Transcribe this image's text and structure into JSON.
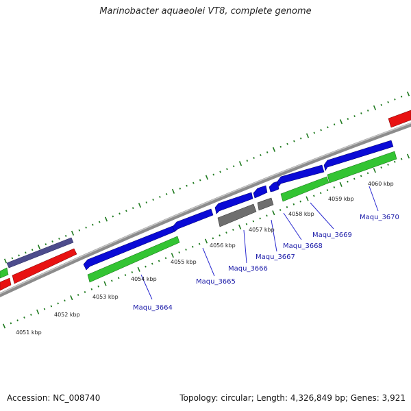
{
  "title": "Marinobacter aquaeolei VT8, complete genome",
  "footer": {
    "accession": "Accession: NC_008740",
    "summary": "Topology: circular; Length: 4,326,849 bp; Genes: 3,921"
  },
  "colors": {
    "backbone": "#8c8c8c",
    "cds_forward": "#0a0ad6",
    "cds_reverse_green": "#33c433",
    "rna_red": "#e81212",
    "slate": "#4d4c8c",
    "pseudo_gray": "#6e6e6e",
    "ticks": "#1f7a1f",
    "leader_lines": "#2a2ad0"
  },
  "scale_labels": [
    "4051 kbp",
    "4052 kbp",
    "4053 kbp",
    "4054 kbp",
    "4055 kbp",
    "4056 kbp",
    "4057 kbp",
    "4058 kbp",
    "4059 kbp",
    "4060 kbp"
  ],
  "gene_labels": [
    "Maqu_3664",
    "Maqu_3665",
    "Maqu_3666",
    "Maqu_3667",
    "Maqu_3668",
    "Maqu_3669",
    "Maqu_3670"
  ]
}
